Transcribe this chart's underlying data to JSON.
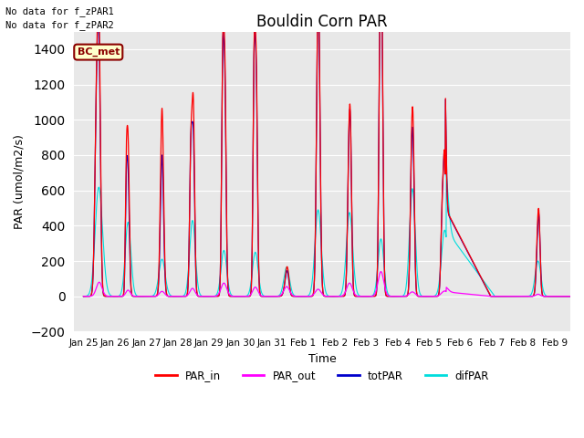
{
  "title": "Bouldin Corn PAR",
  "ylabel": "PAR (umol/m2/s)",
  "xlabel": "Time",
  "no_data_text": [
    "No data for f_zPAR1",
    "No data for f_zPAR2"
  ],
  "legend_label": "BC_met",
  "legend_box_color": "#ffffcc",
  "legend_box_edge_color": "#8b0000",
  "ylim": [
    -200,
    1500
  ],
  "yticks": [
    -200,
    0,
    200,
    400,
    600,
    800,
    1000,
    1200,
    1400
  ],
  "bg_color": "#e8e8e8",
  "fig_color": "#ffffff",
  "line_colors": {
    "PAR_in": "#ff0000",
    "PAR_out": "#ff00ff",
    "totPAR": "#0000cc",
    "difPAR": "#00dddd"
  },
  "date_labels": [
    "Jan 25",
    "Jan 26",
    "Jan 27",
    "Jan 28",
    "Jan 29",
    "Jan 30",
    "Jan 31",
    "Feb 1",
    "Feb 2",
    "Feb 3",
    "Feb 4",
    "Feb 5",
    "Feb 6",
    "Feb 7",
    "Feb 8",
    "Feb 9"
  ],
  "date_positions": [
    0,
    1,
    2,
    3,
    4,
    5,
    6,
    7,
    8,
    9,
    10,
    11,
    12,
    13,
    14,
    15
  ]
}
